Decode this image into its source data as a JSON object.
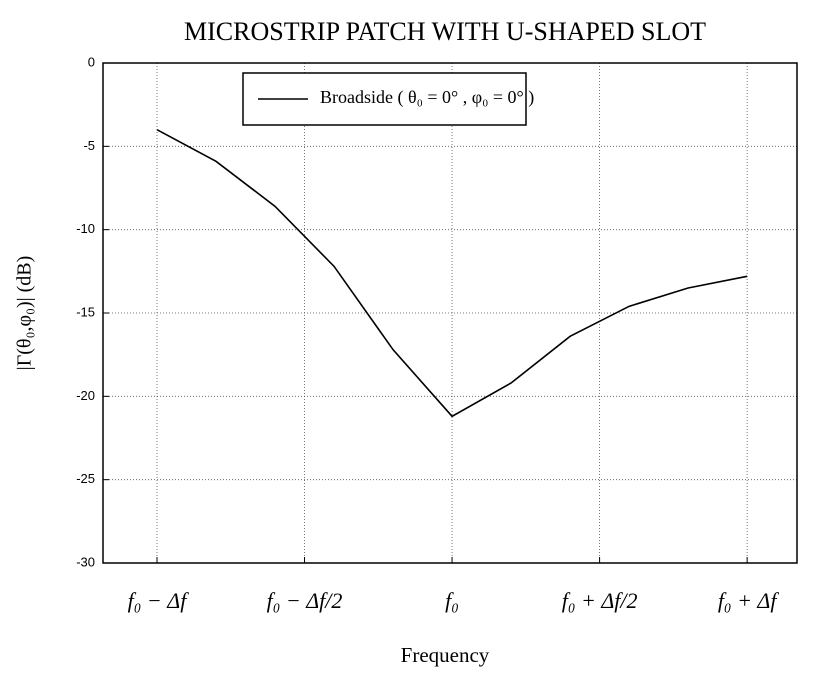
{
  "chart_data": {
    "type": "line",
    "title": "MICROSTRIP PATCH WITH U-SHAPED SLOT",
    "x_label": "Frequency",
    "y_label": "|Γ(θ₀,φ₀)| (dB)",
    "x": [
      -1,
      -0.8,
      -0.6,
      -0.4,
      -0.2,
      0,
      0.2,
      0.4,
      0.6,
      0.8,
      1
    ],
    "series": [
      {
        "name": "Broadside ( θ₀ = 0° , φ₀ = 0° )",
        "color": "#000000",
        "values": [
          -4,
          -5.9,
          -8.6,
          -12.2,
          -17.2,
          -21.2,
          -19.2,
          -16.4,
          -14.6,
          -13.5,
          -12.8
        ]
      }
    ],
    "xlim": [
      -1.183,
      1.169
    ],
    "xticks": [
      {
        "value": -1,
        "label": "f₀ − Δf"
      },
      {
        "value": -0.5,
        "label": "f₀ − Δf/2"
      },
      {
        "value": 0,
        "label": "f₀"
      },
      {
        "value": 0.5,
        "label": "f₀ + Δf/2"
      },
      {
        "value": 1,
        "label": "f₀ + Δf"
      }
    ],
    "ylim": [
      -30,
      0
    ],
    "yticks": [
      0,
      -5,
      -10,
      -15,
      -20,
      -25,
      -30
    ],
    "grid": true,
    "legend": "top"
  }
}
